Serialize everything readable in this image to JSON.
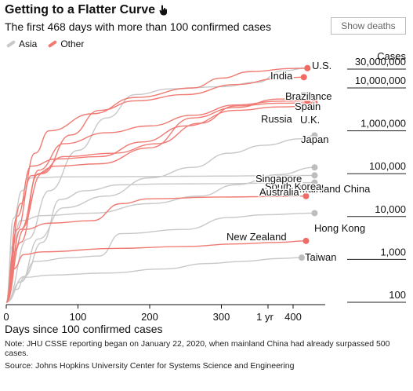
{
  "header": {
    "title": "Getting to a Flatter Curve",
    "subtitle": "The first 468 days with more than 100 confirmed cases",
    "toggle_label": "Show deaths"
  },
  "legend": {
    "items": [
      {
        "label": "Asia",
        "color": "#c8c8c8"
      },
      {
        "label": "Other",
        "color": "#f07a73"
      }
    ]
  },
  "footnote": "Note: JHU CSSE reporting began on January 22, 2020, when mainland China had already surpassed 500 cases.",
  "source": "Source: Johns Hopkins University Center for Systems Science and Engineering",
  "colors": {
    "asia": "#c8c8c8",
    "other": "#f07a73",
    "endpoint_other": "#f06b64",
    "endpoint_asia": "#bdbdbd"
  },
  "chart_data": {
    "type": "line",
    "x_axis": {
      "label": "Days since 100 confirmed cases",
      "ticks": [
        0,
        100,
        200,
        300,
        400
      ],
      "extra_tick": {
        "value": 365,
        "label": "1 yr"
      },
      "range": [
        0,
        468
      ]
    },
    "y_axis": {
      "label": "Cases",
      "scale": "log",
      "range": [
        100,
        30000000
      ],
      "ticks": [
        {
          "value": 100,
          "label": "100"
        },
        {
          "value": 1000,
          "label": "1,000"
        },
        {
          "value": 10000,
          "label": "10,000"
        },
        {
          "value": 100000,
          "label": "100,000"
        },
        {
          "value": 1000000,
          "label": "1,000,000"
        },
        {
          "value": 10000000,
          "label": "10,000,000"
        },
        {
          "value": 30000000,
          "label": "30,000,000"
        }
      ]
    },
    "series": [
      {
        "name": "U.S.",
        "group": "Other",
        "points": [
          [
            0,
            100
          ],
          [
            20,
            20000
          ],
          [
            40,
            300000
          ],
          [
            60,
            1000000
          ],
          [
            120,
            2500000
          ],
          [
            180,
            6000000
          ],
          [
            260,
            10000000
          ],
          [
            300,
            17000000
          ],
          [
            340,
            24000000
          ],
          [
            400,
            28500000
          ],
          [
            420,
            29000000
          ]
        ]
      },
      {
        "name": "India",
        "group": "Asia",
        "points": [
          [
            0,
            100
          ],
          [
            30,
            3000
          ],
          [
            60,
            40000
          ],
          [
            100,
            350000
          ],
          [
            140,
            2000000
          ],
          [
            180,
            7000000
          ],
          [
            230,
            9500000
          ],
          [
            300,
            10700000
          ],
          [
            350,
            13500000
          ],
          [
            385,
            25000000
          ],
          [
            420,
            29000000
          ]
        ]
      },
      {
        "name": "Brazil",
        "group": "Other",
        "points": [
          [
            0,
            100
          ],
          [
            20,
            5000
          ],
          [
            50,
            100000
          ],
          [
            90,
            800000
          ],
          [
            130,
            3000000
          ],
          [
            180,
            5000000
          ],
          [
            250,
            7000000
          ],
          [
            320,
            12000000
          ],
          [
            380,
            16500000
          ],
          [
            415,
            17800000
          ]
        ]
      },
      {
        "name": "France",
        "group": "Other",
        "points": [
          [
            0,
            100
          ],
          [
            15,
            5000
          ],
          [
            35,
            90000
          ],
          [
            70,
            150000
          ],
          [
            130,
            170000
          ],
          [
            200,
            400000
          ],
          [
            260,
            2000000
          ],
          [
            320,
            3500000
          ],
          [
            380,
            5500000
          ],
          [
            430,
            5800000
          ]
        ]
      },
      {
        "name": "Spain",
        "group": "Other",
        "points": [
          [
            0,
            100
          ],
          [
            15,
            10000
          ],
          [
            35,
            150000
          ],
          [
            70,
            220000
          ],
          [
            130,
            250000
          ],
          [
            190,
            550000
          ],
          [
            250,
            1300000
          ],
          [
            320,
            3000000
          ],
          [
            380,
            3600000
          ],
          [
            430,
            3800000
          ]
        ]
      },
      {
        "name": "Russia",
        "group": "Other",
        "points": [
          [
            0,
            100
          ],
          [
            20,
            2500
          ],
          [
            45,
            120000
          ],
          [
            80,
            500000
          ],
          [
            140,
            900000
          ],
          [
            200,
            1300000
          ],
          [
            260,
            2300000
          ],
          [
            320,
            4000000
          ],
          [
            380,
            4900000
          ],
          [
            420,
            5000000
          ]
        ]
      },
      {
        "name": "U.K.",
        "group": "Other",
        "points": [
          [
            0,
            100
          ],
          [
            20,
            5000
          ],
          [
            45,
            100000
          ],
          [
            80,
            250000
          ],
          [
            150,
            300000
          ],
          [
            210,
            500000
          ],
          [
            270,
            1500000
          ],
          [
            320,
            3800000
          ],
          [
            380,
            4400000
          ],
          [
            430,
            4500000
          ]
        ]
      },
      {
        "name": "Japan",
        "group": "Asia",
        "points": [
          [
            0,
            100
          ],
          [
            20,
            300
          ],
          [
            45,
            3000
          ],
          [
            80,
            16000
          ],
          [
            140,
            30000
          ],
          [
            200,
            80000
          ],
          [
            260,
            140000
          ],
          [
            310,
            300000
          ],
          [
            360,
            460000
          ],
          [
            410,
            650000
          ],
          [
            430,
            780000
          ]
        ]
      },
      {
        "name": "Singapore",
        "group": "Asia",
        "points": [
          [
            0,
            100
          ],
          [
            25,
            400
          ],
          [
            50,
            2500
          ],
          [
            75,
            25000
          ],
          [
            110,
            40000
          ],
          [
            160,
            55000
          ],
          [
            220,
            57500
          ],
          [
            300,
            58500
          ],
          [
            370,
            60500
          ],
          [
            430,
            62000
          ]
        ]
      },
      {
        "name": "South Korea",
        "group": "Asia",
        "points": [
          [
            0,
            100
          ],
          [
            8,
            2000
          ],
          [
            20,
            8000
          ],
          [
            50,
            10500
          ],
          [
            120,
            12000
          ],
          [
            200,
            20000
          ],
          [
            270,
            30000
          ],
          [
            320,
            55000
          ],
          [
            380,
            95000
          ],
          [
            430,
            140000
          ]
        ]
      },
      {
        "name": "Mainland China",
        "group": "Asia",
        "points": [
          [
            0,
            100
          ],
          [
            10,
            9000
          ],
          [
            22,
            40000
          ],
          [
            35,
            80000
          ],
          [
            80,
            84000
          ],
          [
            200,
            86000
          ],
          [
            300,
            88000
          ],
          [
            380,
            90000
          ],
          [
            430,
            91000
          ]
        ]
      },
      {
        "name": "Australia",
        "group": "Other",
        "points": [
          [
            0,
            100
          ],
          [
            10,
            1500
          ],
          [
            25,
            5000
          ],
          [
            60,
            7000
          ],
          [
            120,
            8000
          ],
          [
            160,
            20000
          ],
          [
            200,
            26000
          ],
          [
            300,
            28500
          ],
          [
            380,
            29300
          ],
          [
            418,
            30000
          ]
        ]
      },
      {
        "name": "Hong Kong",
        "group": "Asia",
        "points": [
          [
            0,
            100
          ],
          [
            20,
            300
          ],
          [
            40,
            900
          ],
          [
            90,
            1100
          ],
          [
            130,
            1200
          ],
          [
            160,
            4000
          ],
          [
            250,
            5000
          ],
          [
            310,
            9500
          ],
          [
            360,
            11000
          ],
          [
            430,
            12000
          ]
        ]
      },
      {
        "name": "New Zealand",
        "group": "Other",
        "points": [
          [
            0,
            100
          ],
          [
            10,
            600
          ],
          [
            25,
            1300
          ],
          [
            50,
            1500
          ],
          [
            150,
            1800
          ],
          [
            250,
            2000
          ],
          [
            320,
            2300
          ],
          [
            380,
            2500
          ],
          [
            418,
            2700
          ]
        ]
      },
      {
        "name": "Taiwan",
        "group": "Asia",
        "points": [
          [
            0,
            100
          ],
          [
            15,
            200
          ],
          [
            25,
            380
          ],
          [
            60,
            430
          ],
          [
            140,
            480
          ],
          [
            220,
            600
          ],
          [
            280,
            800
          ],
          [
            330,
            900
          ],
          [
            380,
            1050
          ],
          [
            412,
            1100
          ]
        ]
      }
    ],
    "annotations": [
      {
        "label": "U.S."
      },
      {
        "label": "India"
      },
      {
        "label": "Brazil"
      },
      {
        "label": "France"
      },
      {
        "label": "Spain"
      },
      {
        "label": "Russia"
      },
      {
        "label": "U.K."
      },
      {
        "label": "Japan"
      },
      {
        "label": "Singapore"
      },
      {
        "label": "South Korea"
      },
      {
        "label": "Mainland China"
      },
      {
        "label": "Australia"
      },
      {
        "label": "Hong Kong"
      },
      {
        "label": "New Zealand"
      },
      {
        "label": "Taiwan"
      }
    ]
  }
}
